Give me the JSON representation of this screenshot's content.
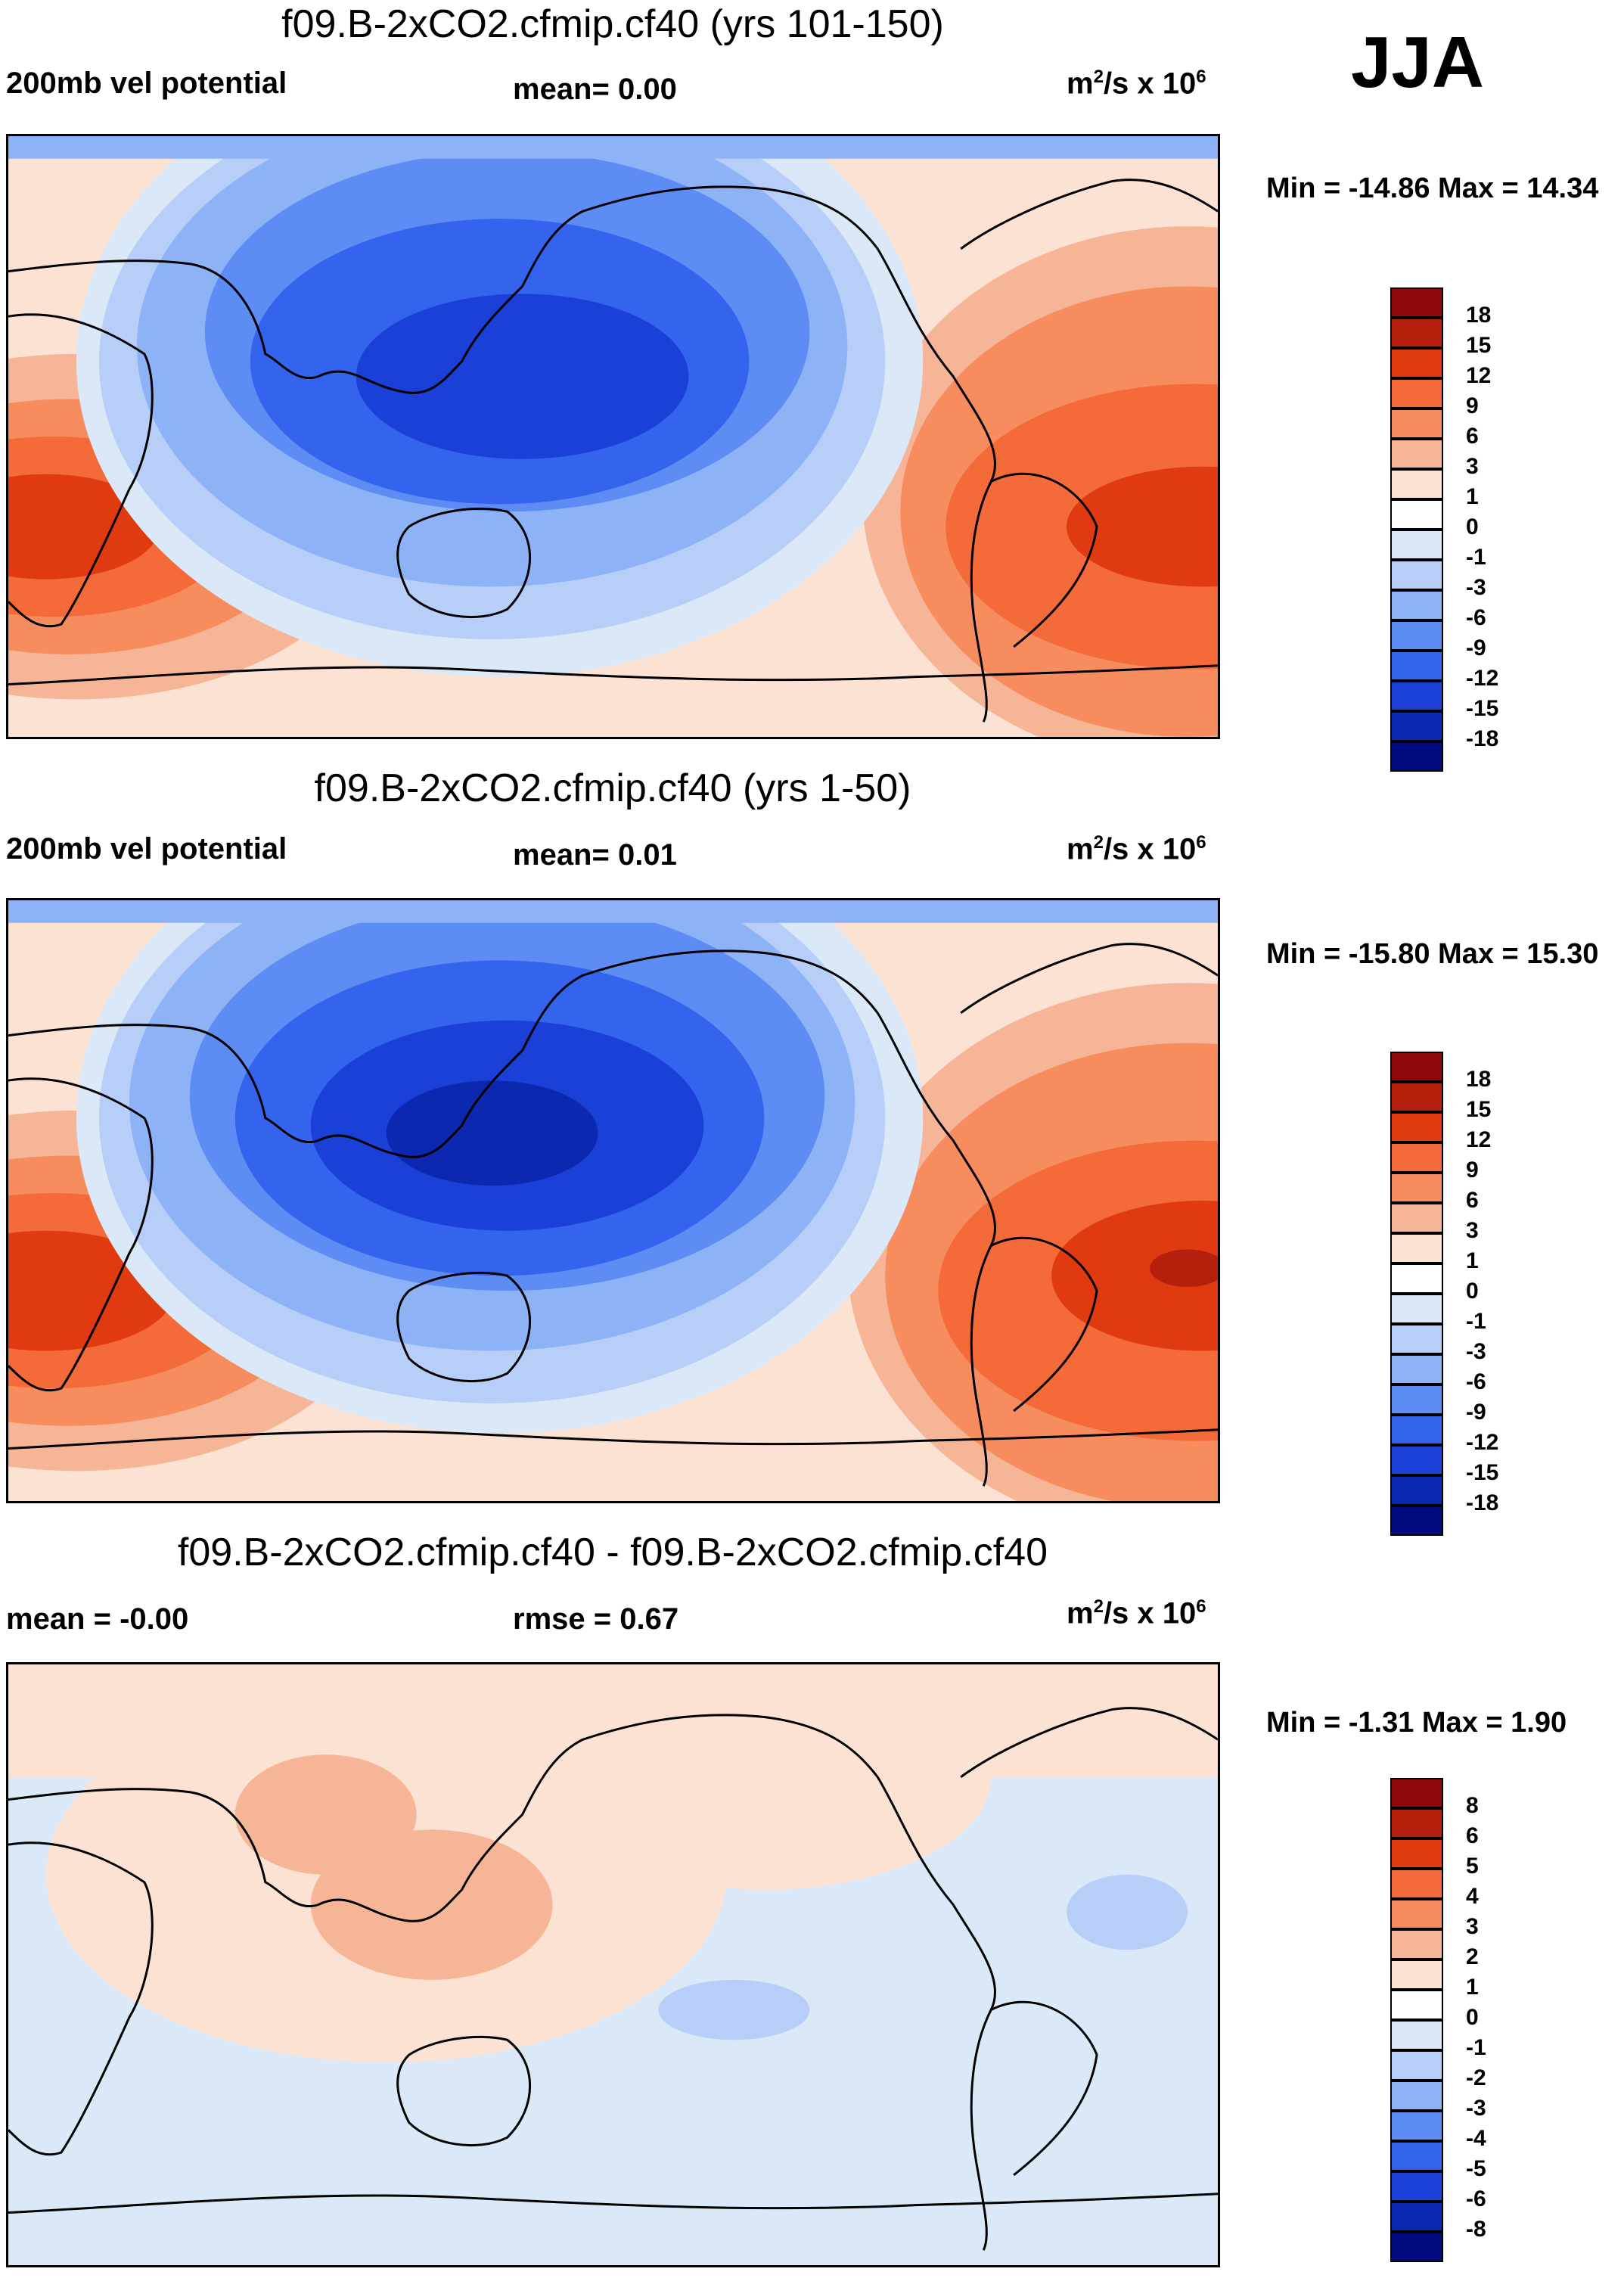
{
  "season": "JJA",
  "colors": {
    "main_scale": [
      "#f7f7f7"
    ],
    "ramp_18": [
      "#8e0a0a",
      "#b4200c",
      "#e03a10",
      "#f46a38",
      "#f78d5f",
      "#f7b598",
      "#fbe2d2",
      "#dbe8f8",
      "#b6cef8",
      "#8db3f6",
      "#5d8cf5",
      "#3463ee",
      "#1a40d8",
      "#0d28b0",
      "#020a80"
    ],
    "ramp_8": [
      "#8e0a0a",
      "#b4200c",
      "#e03a10",
      "#f46a38",
      "#f78d5f",
      "#f7b598",
      "#fbe2d2",
      "#dbe8f8",
      "#b6cef8",
      "#8db3f6",
      "#5d8cf5",
      "#3463ee",
      "#1a40d8",
      "#0d28b0",
      "#020a80"
    ]
  },
  "panels": [
    {
      "title": "f09.B-2xCO2.cfmip.cf40 (yrs 101-150)",
      "left_label": "200mb vel potential",
      "center_label": "mean=   0.00",
      "units_base": "m",
      "units_sup1": "2",
      "units_mid": "/s x 10",
      "units_sup2": "6",
      "minmax": "Min = -14.86 Max =  14.34",
      "levels": [
        "18",
        "15",
        "12",
        "9",
        "6",
        "3",
        "1",
        "0",
        "-1",
        "-3",
        "-6",
        "-9",
        "-12",
        "-15",
        "-18"
      ]
    },
    {
      "title": "f09.B-2xCO2.cfmip.cf40 (yrs 1-50)",
      "left_label": "200mb vel potential",
      "center_label": "mean=   0.01",
      "units_base": "m",
      "units_sup1": "2",
      "units_mid": "/s x 10",
      "units_sup2": "6",
      "minmax": "Min = -15.80 Max =  15.30",
      "levels": [
        "18",
        "15",
        "12",
        "9",
        "6",
        "3",
        "1",
        "0",
        "-1",
        "-3",
        "-6",
        "-9",
        "-12",
        "-15",
        "-18"
      ]
    },
    {
      "title": "f09.B-2xCO2.cfmip.cf40 - f09.B-2xCO2.cfmip.cf40",
      "left_label": "mean =  -0.00",
      "center_label": "rmse =    0.67",
      "units_base": "m",
      "units_sup1": "2",
      "units_mid": "/s x 10",
      "units_sup2": "6",
      "minmax": "Min =  -1.31 Max =   1.90",
      "levels": [
        "8",
        "6",
        "5",
        "4",
        "3",
        "2",
        "1",
        "0",
        "-1",
        "-2",
        "-3",
        "-4",
        "-5",
        "-6",
        "-8"
      ]
    }
  ]
}
